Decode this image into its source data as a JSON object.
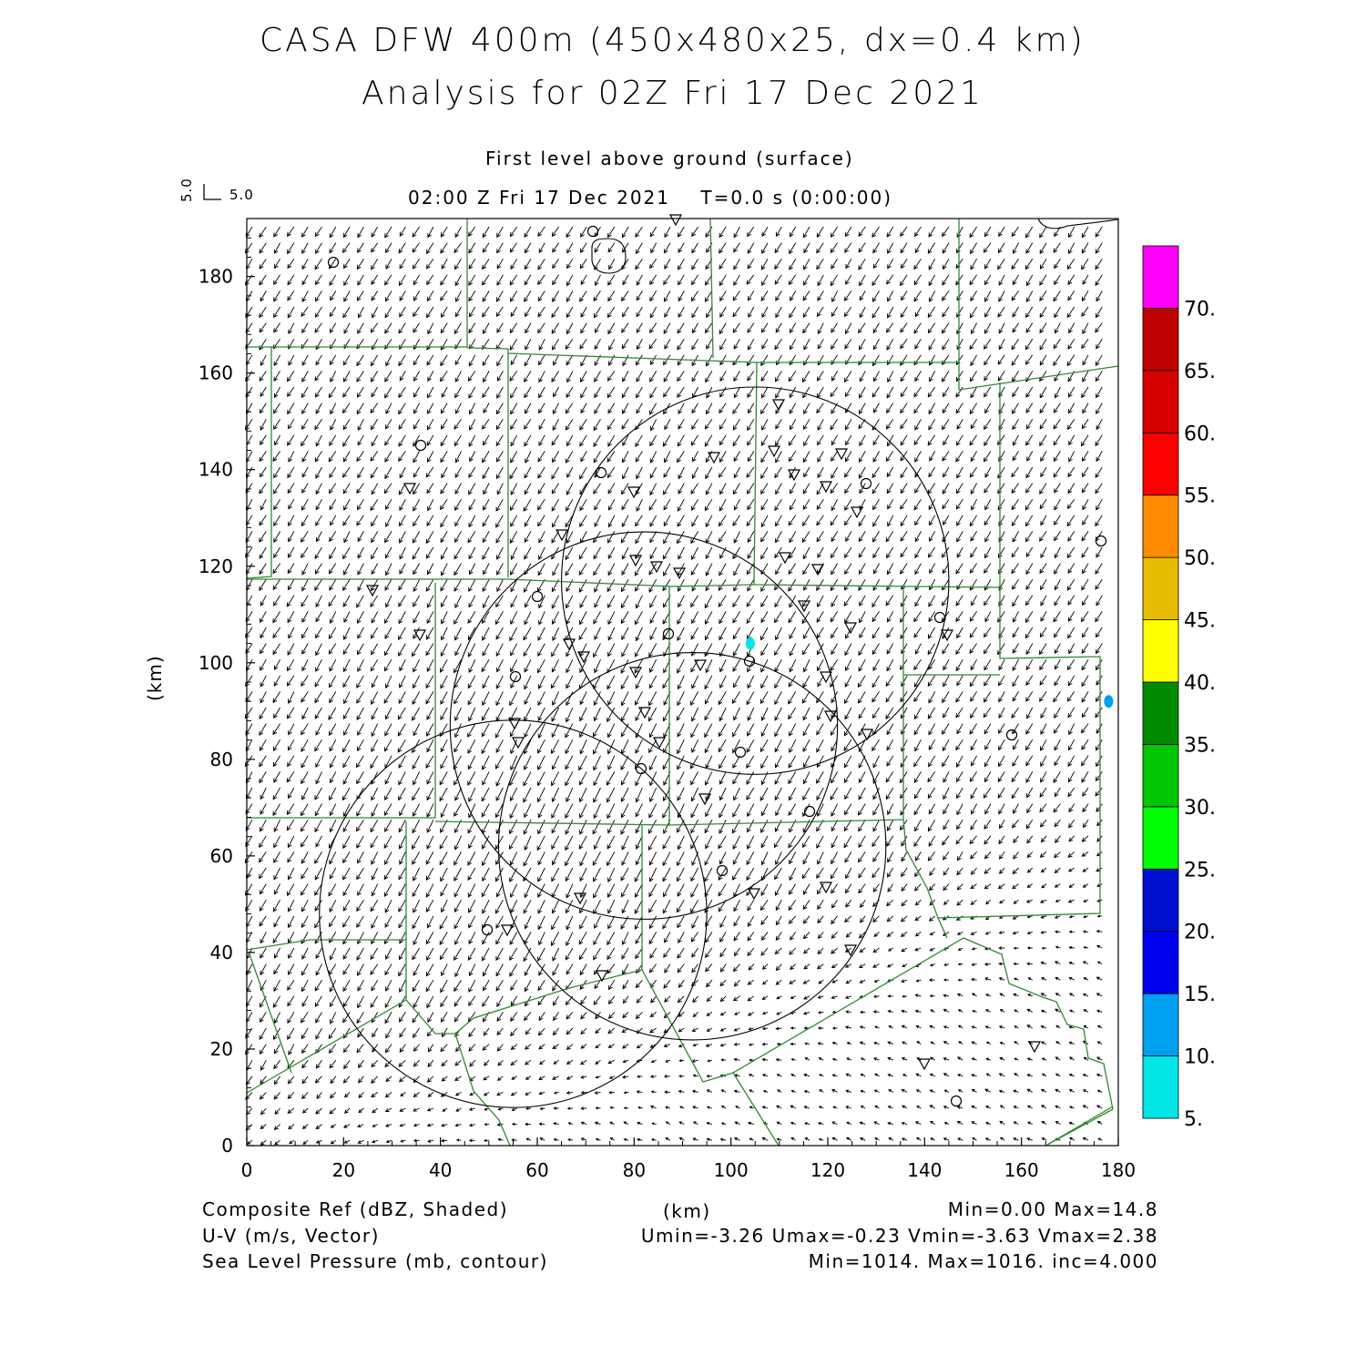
{
  "title": {
    "line1": "CASA DFW 400m (450x480x25, dx=0.4 km)",
    "line2": "Analysis for 02Z Fri 17 Dec 2021"
  },
  "subtitle": {
    "level": "First level above ground (surface)",
    "time": "02:00 Z Fri 17 Dec 2021    T=0.0 s (0:00:00)"
  },
  "vector_ref": {
    "v_label": "5.0",
    "u_label": "5.0"
  },
  "chart_data": {
    "type": "heatmap",
    "xlabel": "(km)",
    "ylabel": "(km)",
    "xlim": [
      0,
      180
    ],
    "ylim": [
      0,
      192
    ],
    "x_ticks": [
      "0",
      "20",
      "40",
      "60",
      "80",
      "100",
      "120",
      "140",
      "160",
      "180"
    ],
    "y_ticks": [
      "0",
      "20",
      "40",
      "60",
      "80",
      "100",
      "120",
      "140",
      "160",
      "180"
    ],
    "colorbar": {
      "labels": [
        "5.",
        "10.",
        "15.",
        "20.",
        "25.",
        "30.",
        "35.",
        "40.",
        "45.",
        "50.",
        "55.",
        "60.",
        "65.",
        "70."
      ],
      "colors": [
        "#00e5e5",
        "#00a0f0",
        "#0000f0",
        "#0010d0",
        "#00ff00",
        "#00c800",
        "#008c00",
        "#ffff00",
        "#e6bd00",
        "#ff8c00",
        "#ff0000",
        "#d70000",
        "#bf0000",
        "#ff00ff"
      ]
    },
    "radar_rings": [
      {
        "center": [
          105,
          117
        ],
        "radius_km": 40
      },
      {
        "center": [
          82,
          87
        ],
        "radius_km": 40
      },
      {
        "center": [
          92,
          62
        ],
        "radius_km": 40
      },
      {
        "center": [
          55,
          48
        ],
        "radius_km": 40
      }
    ],
    "reflectivity_echoes": [
      {
        "x": 104,
        "y": 104,
        "dbz": 7
      },
      {
        "x": 178,
        "y": 92,
        "dbz": 10
      }
    ],
    "wind": {
      "mean_u_north": -1.6,
      "mean_v_north": -2.6,
      "mean_u_south": -1.2,
      "mean_v_south": 0.6
    }
  },
  "footer": {
    "left": [
      "Composite Ref (dBZ, Shaded)",
      "U-V (m/s, Vector)",
      "Sea Level Pressure (mb, contour)"
    ],
    "center": "(km)",
    "right": [
      "Min=0.00 Max=14.8",
      "Umin=-3.26 Umax=-0.23 Vmin=-3.63 Vmax=2.38",
      "Min=1014. Max=1016. inc=4.000"
    ]
  }
}
